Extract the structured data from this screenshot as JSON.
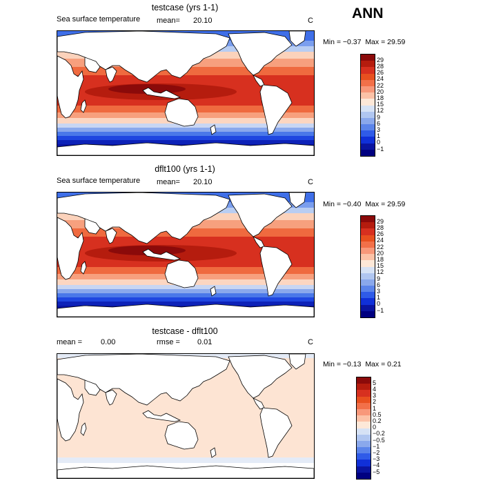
{
  "season": "ANN",
  "panels": [
    {
      "title": "testcase (yrs 1-1)",
      "left_label": "Sea surface temperature",
      "mean_label": "mean=",
      "mean_value": "20.10",
      "units": "C",
      "min_label": "Min =",
      "min_value": "−0.37",
      "max_label": "Max =",
      "max_value": "29.59",
      "colorbar": {
        "labels": [
          "29",
          "28",
          "26",
          "24",
          "22",
          "20",
          "18",
          "15",
          "12",
          "9",
          "6",
          "3",
          "1",
          "0",
          "−1"
        ],
        "colors": [
          "#8b0a0a",
          "#b51c0e",
          "#d7301f",
          "#e8501f",
          "#f27049",
          "#f8987a",
          "#fcc2a7",
          "#fde8d8",
          "#d6e2f5",
          "#b0c6f0",
          "#8aa8ec",
          "#5b84ea",
          "#2f5be8",
          "#1030d8",
          "#0a14a0",
          "#000080"
        ]
      },
      "map_style": "sst"
    },
    {
      "title": "dflt100 (yrs 1-1)",
      "left_label": "Sea surface temperature",
      "mean_label": "mean=",
      "mean_value": "20.10",
      "units": "C",
      "min_label": "Min =",
      "min_value": "−0.40",
      "max_label": "Max =",
      "max_value": "29.59",
      "colorbar": {
        "labels": [
          "29",
          "28",
          "26",
          "24",
          "22",
          "20",
          "18",
          "15",
          "12",
          "9",
          "6",
          "3",
          "1",
          "0",
          "−1"
        ],
        "colors": [
          "#8b0a0a",
          "#b51c0e",
          "#d7301f",
          "#e8501f",
          "#f27049",
          "#f8987a",
          "#fcc2a7",
          "#fde8d8",
          "#d6e2f5",
          "#b0c6f0",
          "#8aa8ec",
          "#5b84ea",
          "#2f5be8",
          "#1030d8",
          "#0a14a0",
          "#000080"
        ]
      },
      "map_style": "sst"
    },
    {
      "title": "testcase - dflt100",
      "mean_label": "mean =",
      "mean_value": "0.00",
      "rmse_label": "rmse =",
      "rmse_value": "0.01",
      "units": "C",
      "min_label": "Min =",
      "min_value": "−0.13",
      "max_label": "Max =",
      "max_value": "0.21",
      "colorbar": {
        "labels": [
          "5",
          "4",
          "3",
          "2",
          "1",
          "0.5",
          "0.2",
          "0",
          "−0.2",
          "−0.5",
          "−1",
          "−2",
          "−3",
          "−4",
          "−5"
        ],
        "colors": [
          "#8b0a0a",
          "#b51c0e",
          "#d7301f",
          "#e8501f",
          "#f27049",
          "#f8987a",
          "#fcc2a7",
          "#fde8d8",
          "#d6e2f5",
          "#b0c6f0",
          "#8aa8ec",
          "#5b84ea",
          "#2f5be8",
          "#1030d8",
          "#0a14a0",
          "#000080"
        ]
      },
      "map_style": "diff"
    }
  ]
}
